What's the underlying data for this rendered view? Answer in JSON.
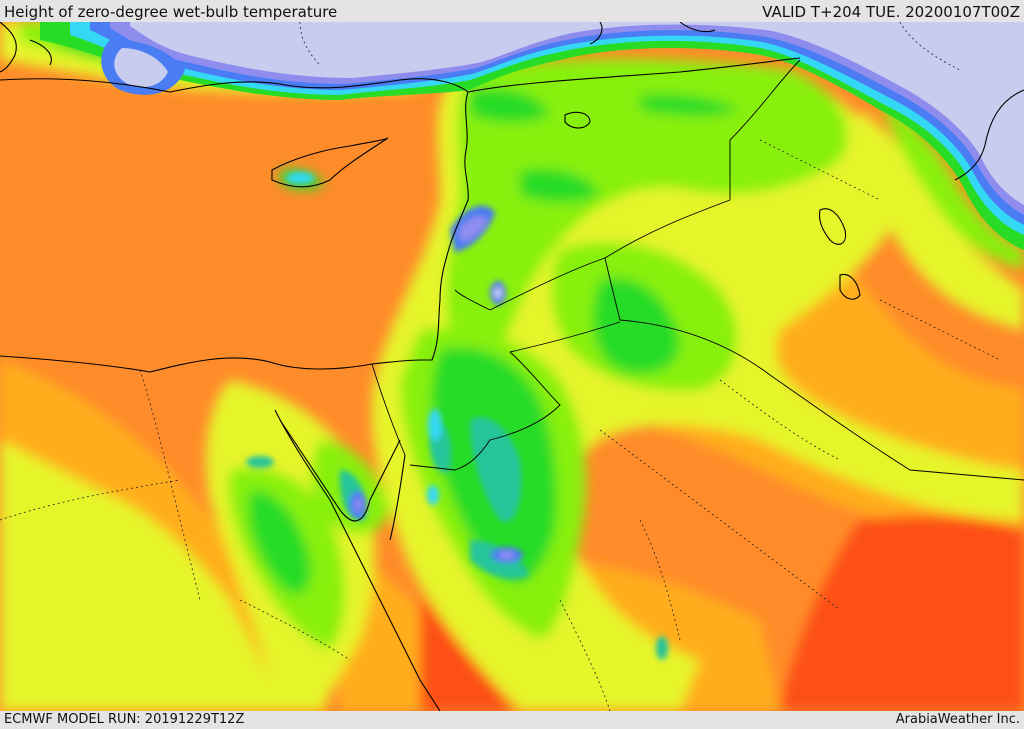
{
  "header": {
    "title": "Height of zero-degree wet-bulb temperature",
    "valid_time": "VALID T+204 TUE. 20200107T00Z"
  },
  "footer": {
    "model_run": "ECMWF MODEL RUN: 20191229T12Z",
    "credit": "ArabiaWeather Inc."
  },
  "map": {
    "colors": {
      "deep_orange": "#fd4f12",
      "orange": "#ff8c2a",
      "light_orange": "#ffad1c",
      "yellow": "#e6f42a",
      "lime": "#88f00b",
      "green": "#28dc26",
      "teal": "#25c49a",
      "cyan": "#35d8f4",
      "blue": "#4a7cf3",
      "violet": "#8e8dee",
      "lavender": "#c8cdf0",
      "outline": "#000000"
    }
  }
}
